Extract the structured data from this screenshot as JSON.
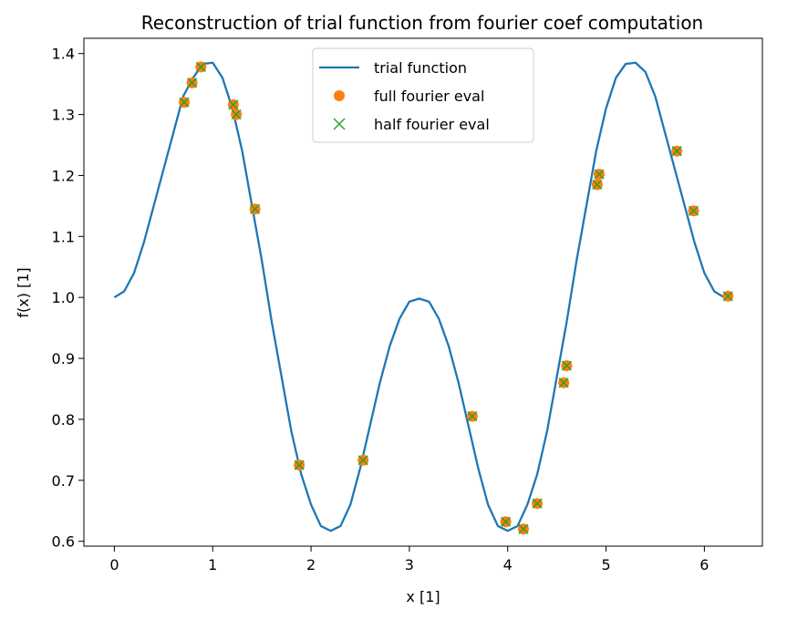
{
  "chart_data": {
    "type": "line",
    "title": "Reconstruction of trial function from fourier coef computation",
    "xlabel": "x [1]",
    "ylabel": "f(x) [1]",
    "xlim": [
      -0.31,
      6.59
    ],
    "ylim": [
      0.592,
      1.425
    ],
    "xticks": [
      0,
      1,
      2,
      3,
      4,
      5,
      6
    ],
    "yticks": [
      0.6,
      0.7,
      0.8,
      0.9,
      1.0,
      1.1,
      1.2,
      1.3,
      1.4
    ],
    "xtick_labels": [
      "0",
      "1",
      "2",
      "3",
      "4",
      "5",
      "6"
    ],
    "ytick_labels": [
      "0.6",
      "0.7",
      "0.8",
      "0.9",
      "1.0",
      "1.1",
      "1.2",
      "1.3",
      "1.4"
    ],
    "grid": false,
    "legend_position": "top-center",
    "legend": [
      {
        "label": "trial function",
        "marker": "line",
        "color": "#1f77b4"
      },
      {
        "label": "full fourier eval",
        "marker": "circle",
        "color": "#ff7f0e"
      },
      {
        "label": "half fourier eval",
        "marker": "x",
        "color": "#2ca02c"
      }
    ],
    "series": [
      {
        "name": "trial function",
        "style": "line",
        "color": "#1f77b4",
        "x": [
          0.0,
          0.1,
          0.2,
          0.3,
          0.4,
          0.5,
          0.6,
          0.7,
          0.8,
          0.9,
          1.0,
          1.1,
          1.2,
          1.3,
          1.4,
          1.5,
          1.6,
          1.7,
          1.8,
          1.9,
          2.0,
          2.1,
          2.2,
          2.3,
          2.4,
          2.5,
          2.6,
          2.7,
          2.8,
          2.9,
          3.0,
          3.1,
          3.2,
          3.3,
          3.4,
          3.5,
          3.6,
          3.7,
          3.8,
          3.9,
          4.0,
          4.1,
          4.2,
          4.3,
          4.4,
          4.5,
          4.6,
          4.7,
          4.8,
          4.9,
          5.0,
          5.1,
          5.2,
          5.3,
          5.4,
          5.5,
          5.6,
          5.7,
          5.8,
          5.9,
          6.0,
          6.1,
          6.2,
          6.283
        ],
        "y": [
          1.0,
          1.01,
          1.04,
          1.09,
          1.15,
          1.21,
          1.27,
          1.33,
          1.36,
          1.383,
          1.385,
          1.36,
          1.31,
          1.24,
          1.15,
          1.06,
          0.96,
          0.87,
          0.78,
          0.71,
          0.66,
          0.625,
          0.617,
          0.625,
          0.66,
          0.72,
          0.79,
          0.86,
          0.92,
          0.965,
          0.993,
          0.998,
          0.993,
          0.965,
          0.92,
          0.86,
          0.79,
          0.72,
          0.66,
          0.625,
          0.617,
          0.625,
          0.66,
          0.71,
          0.78,
          0.87,
          0.96,
          1.06,
          1.15,
          1.24,
          1.31,
          1.36,
          1.383,
          1.385,
          1.37,
          1.33,
          1.27,
          1.21,
          1.15,
          1.09,
          1.04,
          1.01,
          1.0,
          1.0
        ]
      },
      {
        "name": "full fourier eval",
        "style": "circle",
        "color": "#ff7f0e",
        "x": [
          0.71,
          0.79,
          0.88,
          1.21,
          1.24,
          1.43,
          1.88,
          2.53,
          3.64,
          3.98,
          4.16,
          4.3,
          4.57,
          4.6,
          4.91,
          4.93,
          5.72,
          5.89,
          6.24
        ],
        "y": [
          1.32,
          1.352,
          1.378,
          1.316,
          1.3,
          1.145,
          0.725,
          0.733,
          0.805,
          0.632,
          0.62,
          0.662,
          0.86,
          0.888,
          1.185,
          1.202,
          1.24,
          1.142,
          1.002
        ]
      },
      {
        "name": "half fourier eval",
        "style": "x",
        "color": "#2ca02c",
        "x": [
          0.71,
          0.79,
          0.88,
          1.21,
          1.24,
          1.43,
          1.88,
          2.53,
          3.64,
          3.98,
          4.16,
          4.3,
          4.57,
          4.6,
          4.91,
          4.93,
          5.72,
          5.89,
          6.24
        ],
        "y": [
          1.32,
          1.352,
          1.378,
          1.316,
          1.3,
          1.145,
          0.725,
          0.733,
          0.805,
          0.632,
          0.62,
          0.662,
          0.86,
          0.888,
          1.185,
          1.202,
          1.24,
          1.142,
          1.002
        ]
      }
    ]
  }
}
